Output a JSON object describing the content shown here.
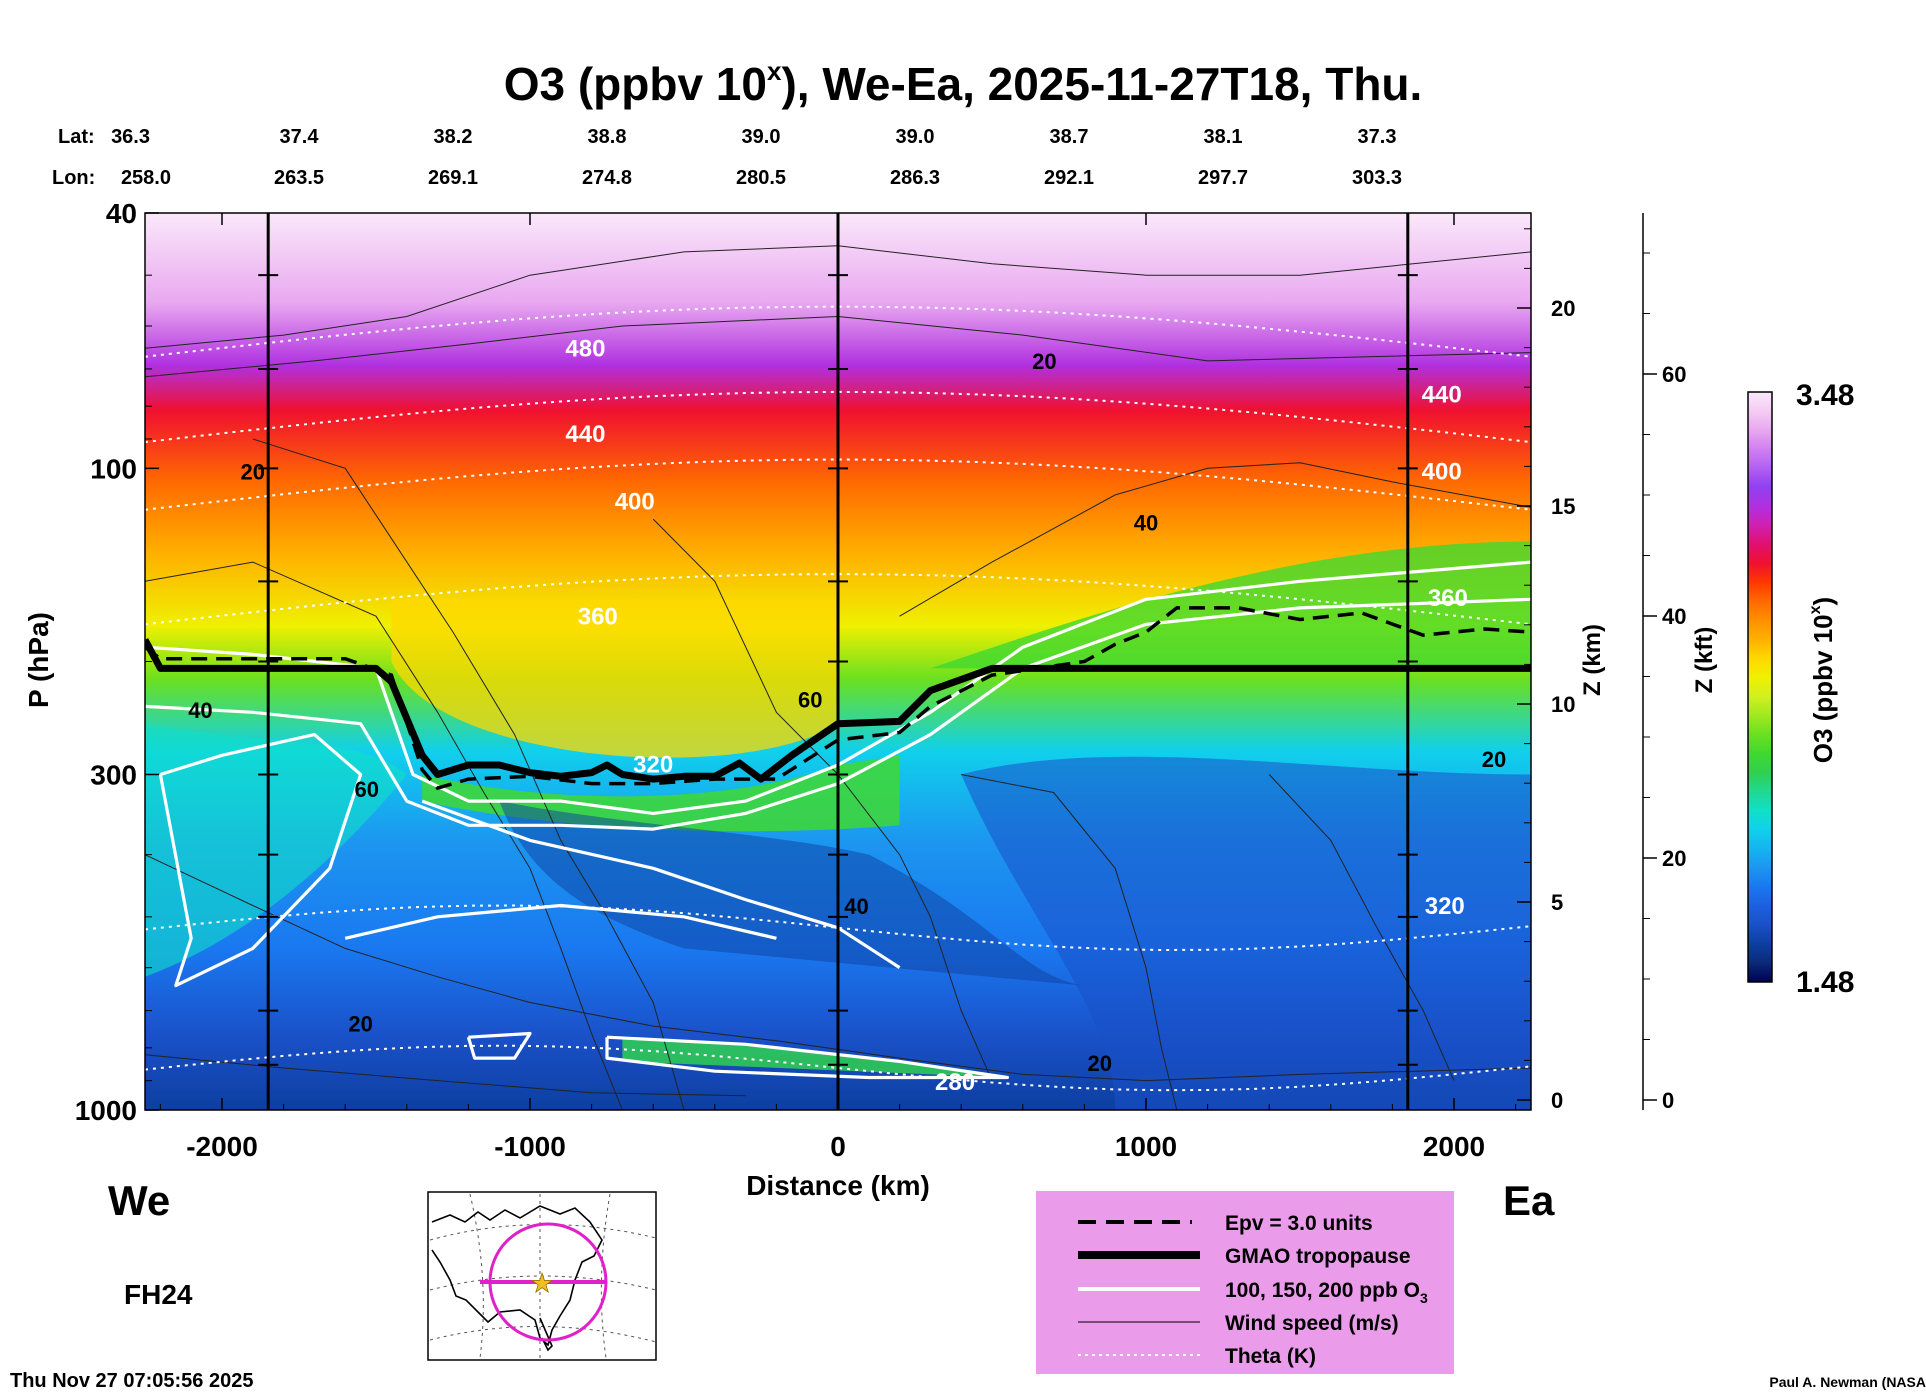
{
  "title": {
    "prefix": "O3 (ppbv 10",
    "sup": "x",
    "suffix": "), We-Ea, 2025-11-27T18, Thu."
  },
  "chart_data": {
    "type": "heatmap",
    "description_axes": true,
    "x_axis": {
      "label": "Distance (km)",
      "range": [
        -2250,
        2250
      ],
      "ticks": [
        -2000,
        -1000,
        0,
        1000,
        2000
      ],
      "tick_labels": [
        "-2000",
        "-1000",
        "0",
        "1000",
        "2000"
      ]
    },
    "y_axis_left": {
      "label": "P (hPa)",
      "scale": "log",
      "range": [
        1000,
        40
      ],
      "tick_labels": [
        "40",
        "100",
        "300",
        "1000"
      ],
      "tick_values": [
        40,
        100,
        300,
        1000
      ]
    },
    "y_axis_right_km": {
      "label": "Z (km)",
      "tick_values": [
        0,
        5,
        10,
        15,
        20
      ],
      "tick_labels": [
        "0",
        "5",
        "10",
        "15",
        "20"
      ]
    },
    "y_axis_right_kft": {
      "label": "Z (kft)",
      "tick_values": [
        0,
        20,
        40,
        60
      ],
      "tick_labels": [
        "0",
        "20",
        "40",
        "60"
      ]
    },
    "top_labels": {
      "lat_label": "Lat:",
      "lon_label": "Lon:",
      "lat": [
        "36.3",
        "37.4",
        "38.2",
        "38.8",
        "39.0",
        "39.0",
        "38.7",
        "38.1",
        "37.3"
      ],
      "lon": [
        "258.0",
        "263.5",
        "269.1",
        "274.8",
        "280.5",
        "286.3",
        "292.1",
        "297.7",
        "303.3"
      ],
      "x_positions_km": [
        -2250,
        -1750,
        -1250,
        -750,
        -250,
        250,
        750,
        1250,
        1750
      ]
    },
    "vertical_lines_km": [
      -1850,
      0,
      1850
    ],
    "colorbar": {
      "label_prefix": "O3 (ppbv 10",
      "label_sup": "x",
      "label_suffix": ")",
      "max_label": "3.48",
      "min_label": "1.48",
      "min": 1.48,
      "max": 3.48,
      "colors": [
        "#000050",
        "#0a2a78",
        "#0d3fa0",
        "#1a50c8",
        "#1c60e0",
        "#1a78f0",
        "#1c96f0",
        "#14b4f0",
        "#10d0ec",
        "#10e0c8",
        "#20d890",
        "#30d050",
        "#40d830",
        "#6ae020",
        "#a0e820",
        "#d0f020",
        "#f0f000",
        "#ffd800",
        "#ffb000",
        "#ff9000",
        "#ff6a00",
        "#ff3800",
        "#f01030",
        "#e01070",
        "#d020b0",
        "#b030e0",
        "#9040f0",
        "#b060f0",
        "#d080f0",
        "#e8a8f0",
        "#f4ccf4",
        "#fbe8fb"
      ]
    },
    "tropopause_hpa": [
      [
        -2250,
        185
      ],
      [
        -2200,
        205
      ],
      [
        -1500,
        205
      ],
      [
        -1450,
        215
      ],
      [
        -1350,
        280
      ],
      [
        -1300,
        300
      ],
      [
        -1200,
        290
      ],
      [
        -1100,
        290
      ],
      [
        -1000,
        298
      ],
      [
        -900,
        302
      ],
      [
        -800,
        298
      ],
      [
        -750,
        290
      ],
      [
        -700,
        300
      ],
      [
        -600,
        305
      ],
      [
        -500,
        302
      ],
      [
        -400,
        302
      ],
      [
        -320,
        288
      ],
      [
        -250,
        305
      ],
      [
        -150,
        280
      ],
      [
        0,
        250
      ],
      [
        200,
        248
      ],
      [
        300,
        222
      ],
      [
        500,
        205
      ],
      [
        900,
        205
      ],
      [
        2250,
        205
      ]
    ],
    "epv_hpa": [
      [
        -2250,
        190
      ],
      [
        -2200,
        198
      ],
      [
        -1600,
        198
      ],
      [
        -1450,
        210
      ],
      [
        -1350,
        295
      ],
      [
        -1300,
        315
      ],
      [
        -1200,
        305
      ],
      [
        -1000,
        302
      ],
      [
        -800,
        310
      ],
      [
        -600,
        310
      ],
      [
        -400,
        305
      ],
      [
        -200,
        305
      ],
      [
        0,
        265
      ],
      [
        200,
        258
      ],
      [
        300,
        235
      ],
      [
        500,
        210
      ],
      [
        800,
        200
      ],
      [
        900,
        188
      ],
      [
        1000,
        180
      ],
      [
        1100,
        165
      ],
      [
        1300,
        165
      ],
      [
        1500,
        172
      ],
      [
        1700,
        168
      ],
      [
        1900,
        182
      ],
      [
        2100,
        178
      ],
      [
        2250,
        180
      ]
    ],
    "theta_labels": [
      {
        "text": "480",
        "x_km": -820,
        "p_hpa": 67
      },
      {
        "text": "440",
        "x_km": -820,
        "p_hpa": 91
      },
      {
        "text": "400",
        "x_km": -660,
        "p_hpa": 116
      },
      {
        "text": "360",
        "x_km": -780,
        "p_hpa": 175
      },
      {
        "text": "320",
        "x_km": -600,
        "p_hpa": 298
      },
      {
        "text": "280",
        "x_km": 380,
        "p_hpa": 930
      },
      {
        "text": "440",
        "x_km": 1960,
        "p_hpa": 79
      },
      {
        "text": "400",
        "x_km": 1960,
        "p_hpa": 104
      },
      {
        "text": "360",
        "x_km": 1980,
        "p_hpa": 164
      },
      {
        "text": "320",
        "x_km": 1970,
        "p_hpa": 495
      }
    ],
    "wind_labels": [
      {
        "text": "20",
        "x_km": -1900,
        "p_hpa": 104
      },
      {
        "text": "40",
        "x_km": -2070,
        "p_hpa": 245
      },
      {
        "text": "60",
        "x_km": -1530,
        "p_hpa": 325
      },
      {
        "text": "60",
        "x_km": -90,
        "p_hpa": 236
      },
      {
        "text": "40",
        "x_km": 60,
        "p_hpa": 495
      },
      {
        "text": "20",
        "x_km": -1550,
        "p_hpa": 755
      },
      {
        "text": "20",
        "x_km": 670,
        "p_hpa": 70
      },
      {
        "text": "40",
        "x_km": 1000,
        "p_hpa": 125
      },
      {
        "text": "20",
        "x_km": 850,
        "p_hpa": 870
      },
      {
        "text": "20",
        "x_km": 2130,
        "p_hpa": 292
      }
    ]
  },
  "side_labels": {
    "west": "We",
    "east": "Ea",
    "forecast_hour": "FH24"
  },
  "legend": {
    "items": [
      {
        "label": "Epv = 3.0 units",
        "style": "dashed"
      },
      {
        "label": "GMAO tropopause",
        "style": "thick"
      },
      {
        "label": "100, 150, 200 ppb O",
        "sub": "3",
        "style": "white"
      },
      {
        "label": "Wind speed (m/s)",
        "style": "thin"
      },
      {
        "label": "Theta (K)",
        "style": "dotted"
      }
    ],
    "background": "#ea9cea"
  },
  "footer": {
    "timestamp": "Thu Nov 27 07:05:56 2025",
    "credit": "Paul A. Newman (NASA"
  }
}
